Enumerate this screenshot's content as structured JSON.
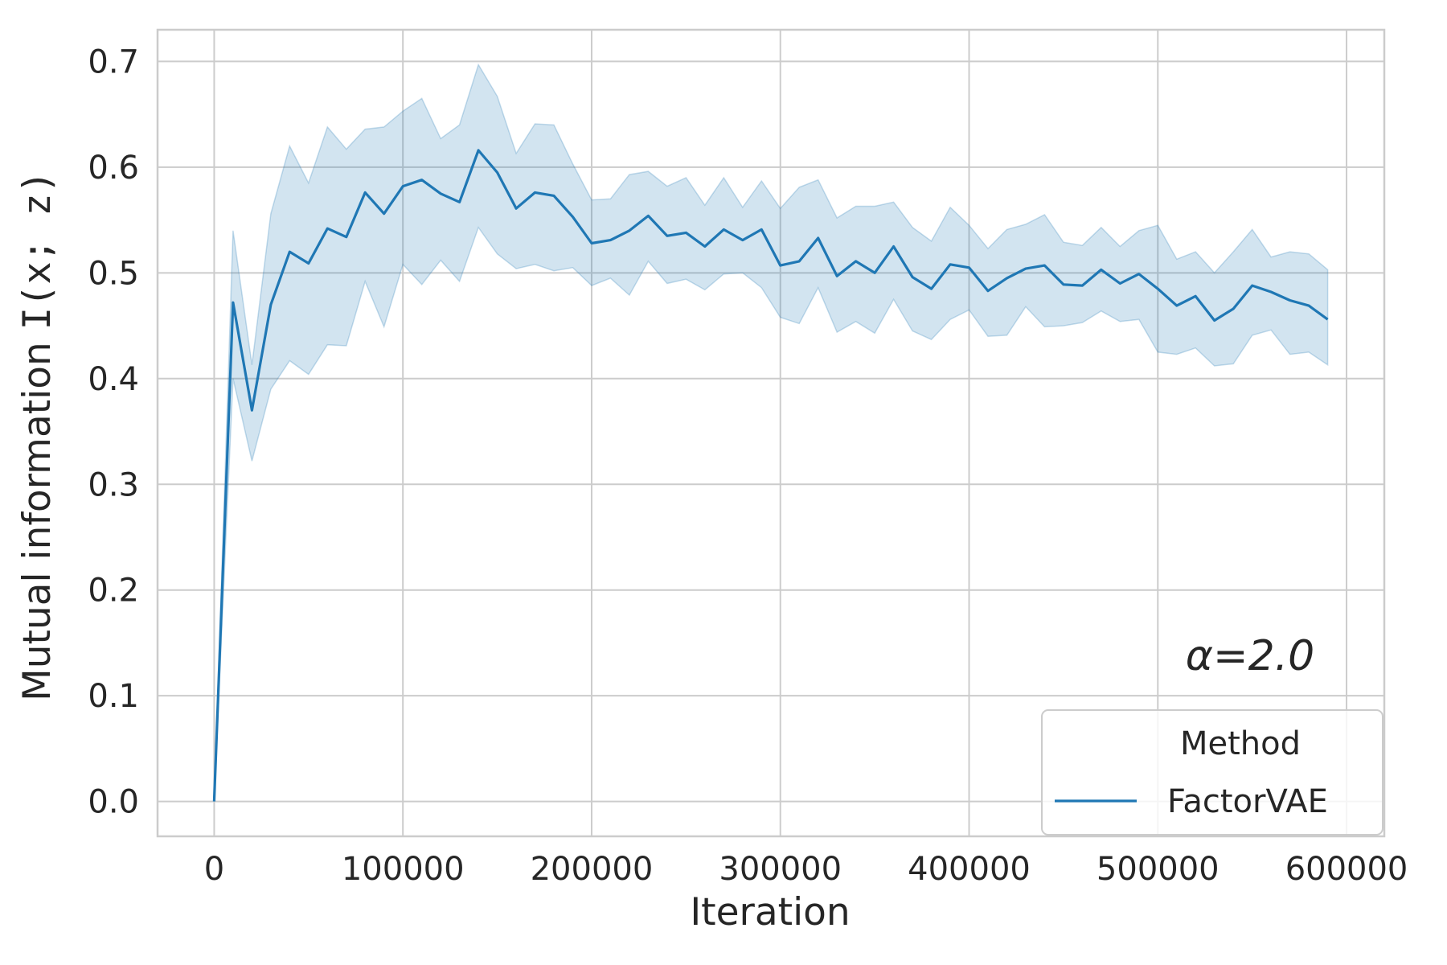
{
  "chart_data": {
    "type": "line",
    "xlabel": "Iteration",
    "ylabel_main": "Mutual information ",
    "ylabel_tail": "I(x; z)",
    "xlim": [
      -30000,
      620000
    ],
    "ylim": [
      -0.033,
      0.73
    ],
    "xticks": [
      0,
      100000,
      200000,
      300000,
      400000,
      500000,
      600000
    ],
    "xtick_labels": [
      "0",
      "100000",
      "200000",
      "300000",
      "400000",
      "500000",
      "600000"
    ],
    "yticks": [
      0.0,
      0.1,
      0.2,
      0.3,
      0.4,
      0.5,
      0.6,
      0.7
    ],
    "ytick_labels": [
      "0.0",
      "0.1",
      "0.2",
      "0.3",
      "0.4",
      "0.5",
      "0.6",
      "0.7"
    ],
    "grid": true,
    "annotation": "α=2.0",
    "legend": {
      "title": "Method",
      "position": "lower-right",
      "entries": [
        "FactorVAE"
      ]
    },
    "colors": {
      "line": "#1f77b4",
      "band": "#1f77b4",
      "grid": "#cccccc",
      "frame": "#cccccc"
    },
    "series": [
      {
        "name": "FactorVAE",
        "x": [
          0,
          10000,
          20000,
          30000,
          40000,
          50000,
          60000,
          70000,
          80000,
          90000,
          100000,
          110000,
          120000,
          130000,
          140000,
          150000,
          160000,
          170000,
          180000,
          190000,
          200000,
          210000,
          220000,
          230000,
          240000,
          250000,
          260000,
          270000,
          280000,
          290000,
          300000,
          310000,
          320000,
          330000,
          340000,
          350000,
          360000,
          370000,
          380000,
          390000,
          400000,
          410000,
          420000,
          430000,
          440000,
          450000,
          460000,
          470000,
          480000,
          490000,
          500000,
          510000,
          520000,
          530000,
          540000,
          550000,
          560000,
          570000,
          580000,
          590000
        ],
        "y": [
          0.0,
          0.472,
          0.37,
          0.47,
          0.52,
          0.509,
          0.542,
          0.534,
          0.576,
          0.556,
          0.582,
          0.588,
          0.575,
          0.567,
          0.616,
          0.595,
          0.561,
          0.576,
          0.573,
          0.553,
          0.528,
          0.531,
          0.54,
          0.554,
          0.535,
          0.538,
          0.525,
          0.541,
          0.531,
          0.541,
          0.507,
          0.511,
          0.533,
          0.497,
          0.511,
          0.5,
          0.525,
          0.496,
          0.485,
          0.508,
          0.505,
          0.483,
          0.495,
          0.504,
          0.507,
          0.489,
          0.488,
          0.503,
          0.49,
          0.499,
          0.485,
          0.469,
          0.478,
          0.455,
          0.466,
          0.488,
          0.482,
          0.474,
          0.469,
          0.456
        ],
        "y_upper": [
          0.0,
          0.54,
          0.413,
          0.556,
          0.62,
          0.585,
          0.638,
          0.617,
          0.636,
          0.638,
          0.653,
          0.665,
          0.627,
          0.64,
          0.697,
          0.667,
          0.613,
          0.641,
          0.64,
          0.603,
          0.569,
          0.57,
          0.593,
          0.596,
          0.582,
          0.59,
          0.564,
          0.59,
          0.562,
          0.587,
          0.561,
          0.581,
          0.588,
          0.552,
          0.563,
          0.563,
          0.567,
          0.543,
          0.53,
          0.562,
          0.545,
          0.523,
          0.541,
          0.546,
          0.555,
          0.529,
          0.526,
          0.543,
          0.525,
          0.54,
          0.545,
          0.513,
          0.52,
          0.5,
          0.52,
          0.541,
          0.515,
          0.52,
          0.518,
          0.503
        ],
        "y_lower": [
          0.0,
          0.4,
          0.322,
          0.39,
          0.417,
          0.404,
          0.432,
          0.431,
          0.492,
          0.449,
          0.508,
          0.489,
          0.512,
          0.492,
          0.543,
          0.518,
          0.504,
          0.508,
          0.502,
          0.505,
          0.488,
          0.495,
          0.479,
          0.511,
          0.49,
          0.494,
          0.484,
          0.499,
          0.5,
          0.486,
          0.458,
          0.452,
          0.486,
          0.444,
          0.454,
          0.443,
          0.475,
          0.445,
          0.437,
          0.456,
          0.465,
          0.44,
          0.441,
          0.468,
          0.449,
          0.45,
          0.453,
          0.464,
          0.454,
          0.456,
          0.425,
          0.423,
          0.429,
          0.412,
          0.414,
          0.441,
          0.446,
          0.423,
          0.425,
          0.413
        ]
      }
    ]
  }
}
